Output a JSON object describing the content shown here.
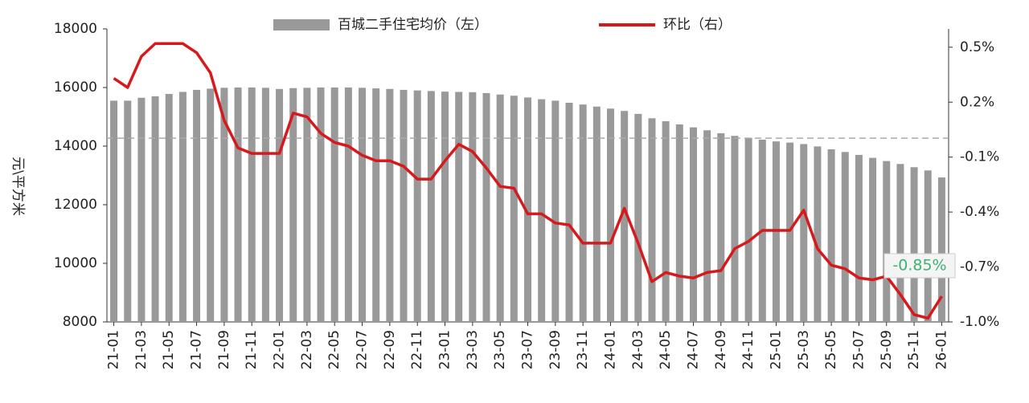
{
  "chart_data": {
    "type": "bar-line",
    "y_label": "元\\平方米",
    "categories": [
      "21-01",
      null,
      "21-03",
      null,
      "21-05",
      null,
      "21-07",
      null,
      "21-09",
      null,
      "21-11",
      null,
      "22-01",
      null,
      "22-03",
      null,
      "22-05",
      null,
      "22-07",
      null,
      "22-09",
      null,
      "22-11",
      null,
      "23-01",
      null,
      "23-03",
      null,
      "23-05",
      null,
      "23-07",
      null,
      "23-09",
      null,
      "23-11",
      null,
      "24-01",
      null,
      "24-03",
      null,
      "24-05",
      null,
      "24-07",
      null,
      "24-09",
      null,
      "24-11",
      null,
      "25-01",
      null,
      "25-03",
      null,
      "25-05",
      null,
      "25-07",
      null,
      "25-09",
      null,
      "25-11",
      null,
      "26-01"
    ],
    "series": [
      {
        "name": "百城二手住宅均价（左）",
        "color": "#999999",
        "type": "bar",
        "values": [
          15550,
          15550,
          15650,
          15700,
          15780,
          15850,
          15920,
          15960,
          15990,
          16000,
          16000,
          15990,
          15950,
          15980,
          15990,
          16000,
          16000,
          16000,
          15990,
          15970,
          15950,
          15920,
          15900,
          15880,
          15860,
          15850,
          15840,
          15810,
          15760,
          15720,
          15660,
          15600,
          15550,
          15480,
          15420,
          15350,
          15280,
          15200,
          15100,
          14950,
          14850,
          14740,
          14640,
          14540,
          14440,
          14350,
          14280,
          14220,
          14160,
          14120,
          14070,
          13990,
          13890,
          13800,
          13700,
          13600,
          13490,
          13390,
          13280,
          13170,
          12930
        ]
      },
      {
        "name": "环比（右）",
        "color": "#d7191c",
        "type": "line",
        "axis": "y2",
        "values": [
          0.33,
          0.28,
          0.45,
          0.52,
          0.52,
          0.52,
          0.47,
          0.36,
          0.1,
          -0.05,
          -0.08,
          -0.08,
          -0.08,
          0.14,
          0.12,
          0.03,
          -0.02,
          -0.04,
          -0.09,
          -0.12,
          -0.12,
          -0.15,
          -0.22,
          -0.22,
          -0.12,
          -0.03,
          -0.07,
          -0.16,
          -0.26,
          -0.27,
          -0.41,
          -0.41,
          -0.46,
          -0.47,
          -0.57,
          -0.57,
          -0.57,
          -0.38,
          -0.57,
          -0.78,
          -0.73,
          -0.75,
          -0.76,
          -0.73,
          -0.72,
          -0.6,
          -0.56,
          -0.5,
          -0.5,
          -0.5,
          -0.39,
          -0.6,
          -0.69,
          -0.71,
          -0.76,
          -0.77,
          -0.75,
          -0.85,
          -0.96,
          -0.98,
          -0.86
        ]
      }
    ],
    "ylim": [
      8000,
      18000
    ],
    "yticks": [
      8000,
      10000,
      12000,
      14000,
      16000,
      18000
    ],
    "y2lim": [
      -1.0,
      0.6
    ],
    "y2ticks": [
      {
        "value": -1.0,
        "label": "-1.0%"
      },
      {
        "value": -0.7,
        "label": "-0.7%"
      },
      {
        "value": -0.4,
        "label": "-0.4%"
      },
      {
        "value": -0.1,
        "label": "-0.1%"
      },
      {
        "value": 0.2,
        "label": "0.2%"
      },
      {
        "value": 0.5,
        "label": "0.5%"
      }
    ],
    "reference_line": 14270,
    "annotation": "-0.85%"
  }
}
